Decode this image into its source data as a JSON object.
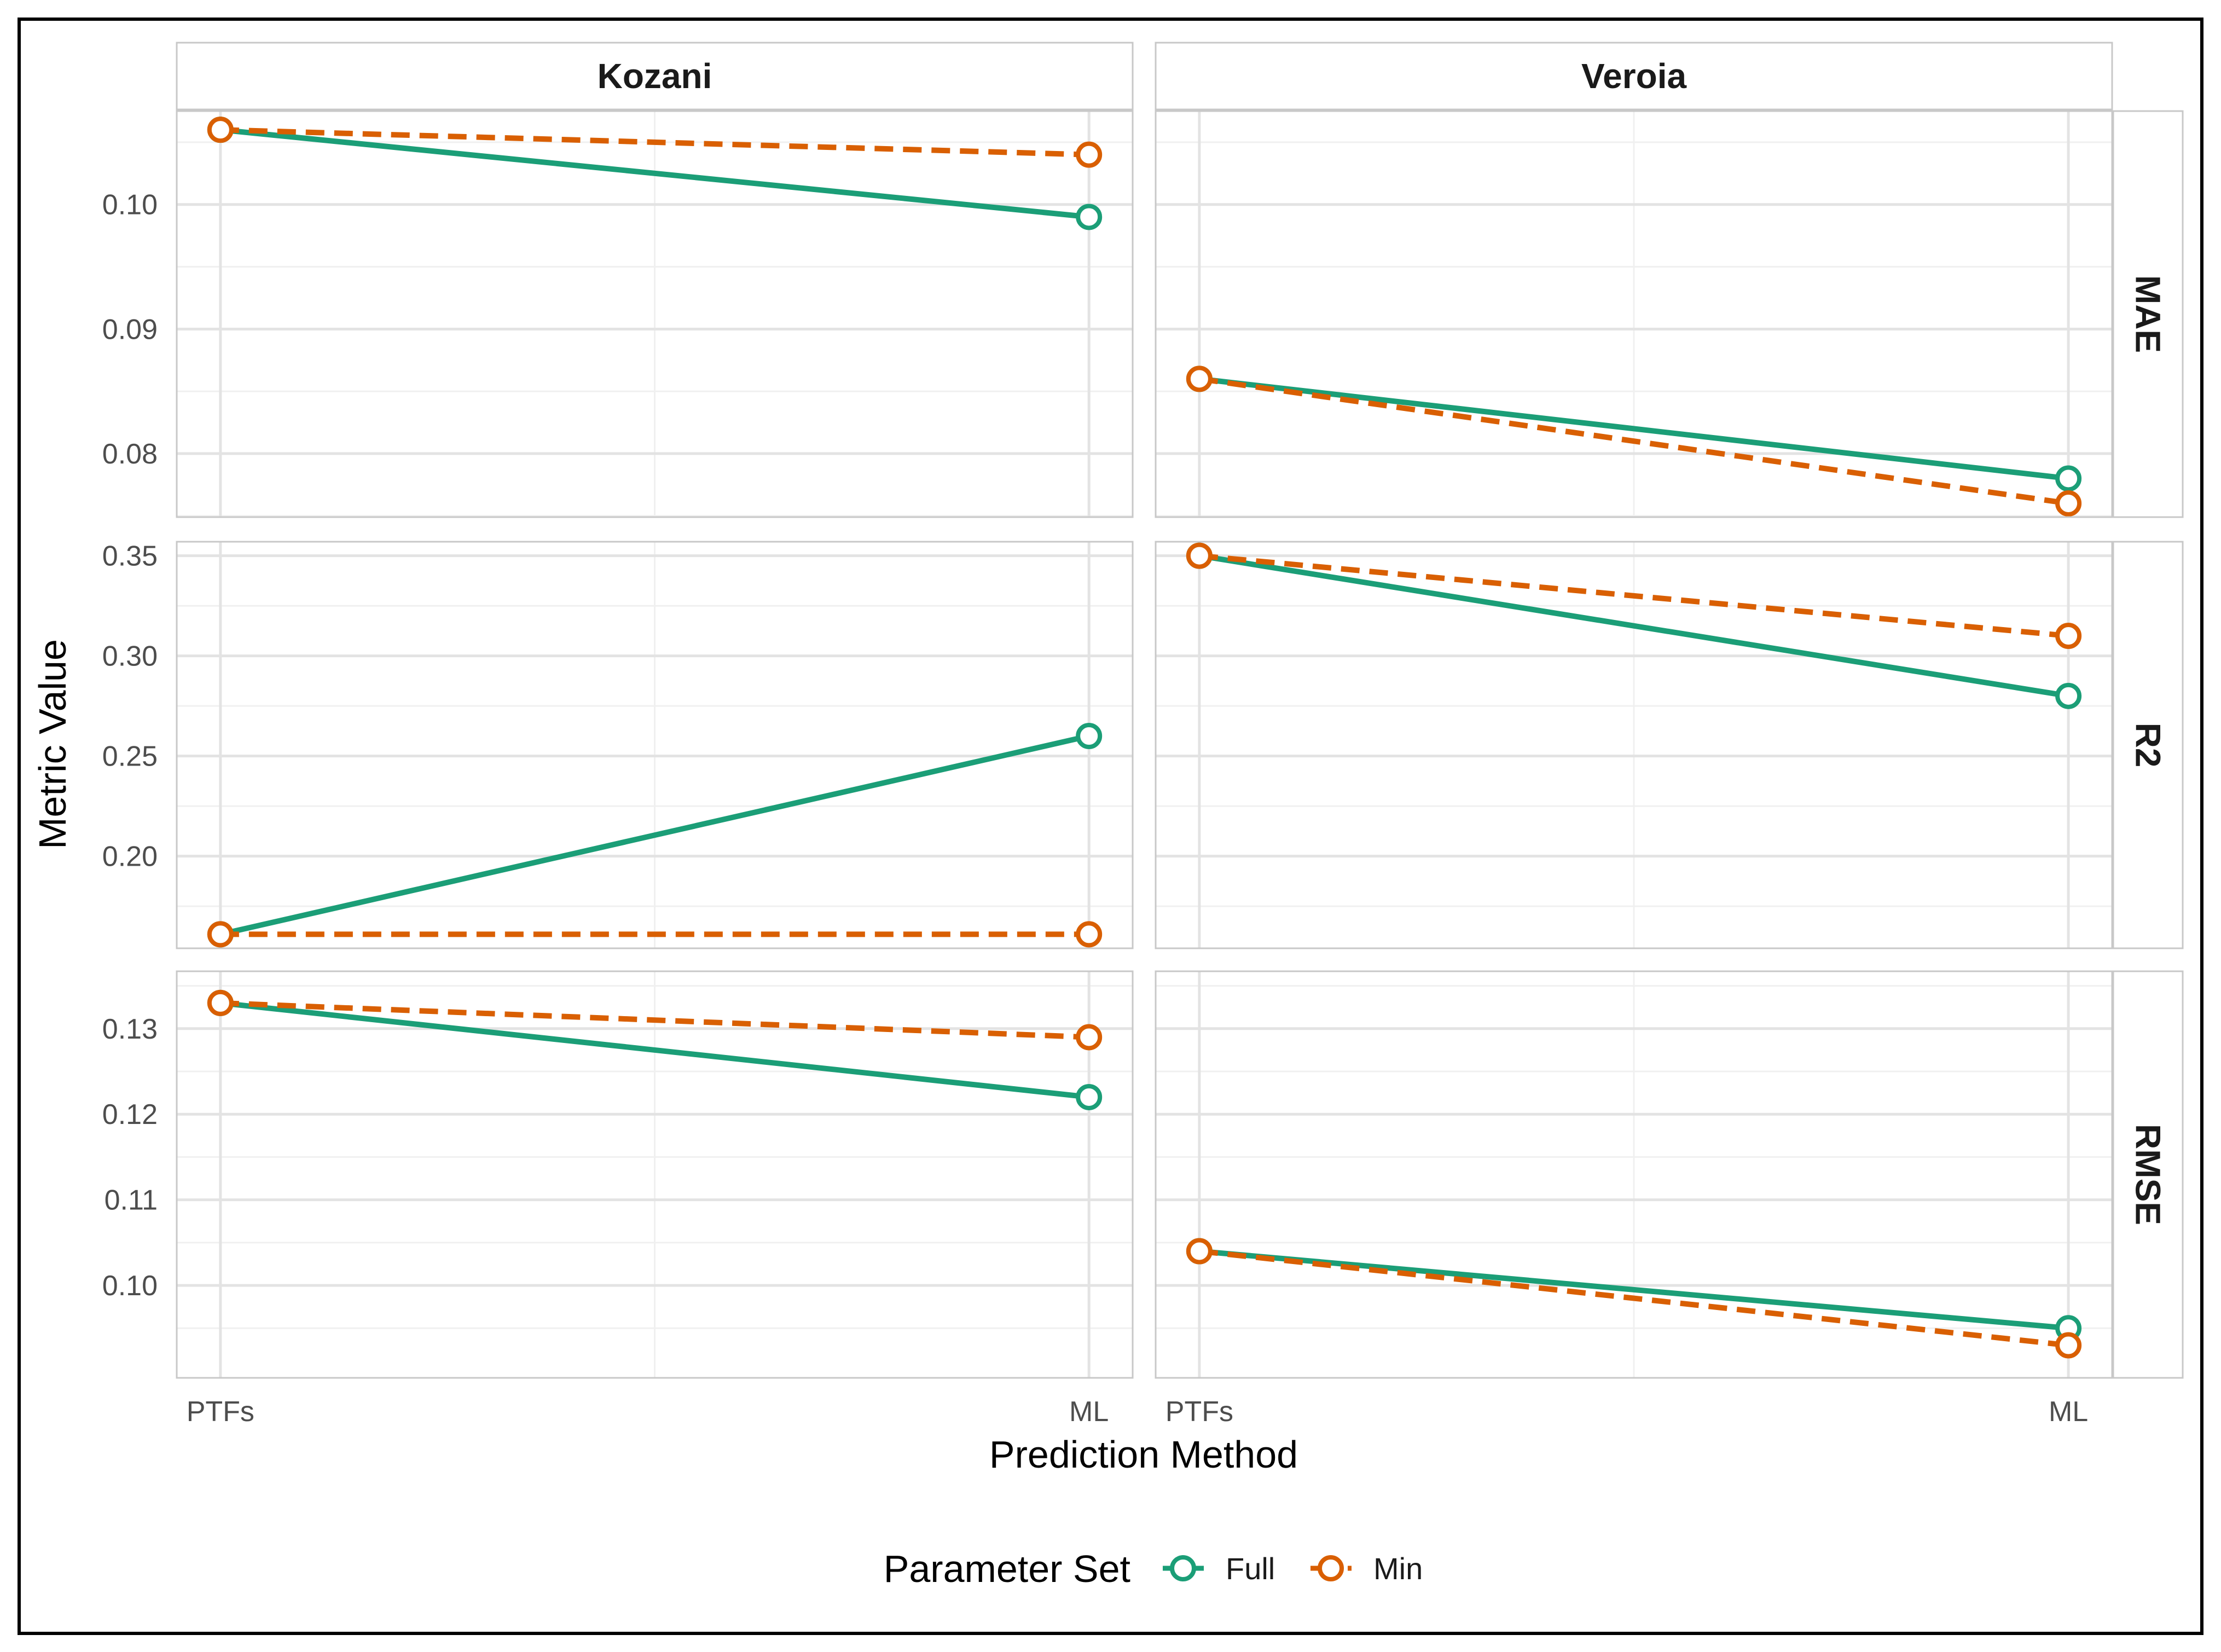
{
  "chart_data": {
    "type": "line",
    "x": [
      "PTFs",
      "ML"
    ],
    "xlabel": "Prediction Method",
    "ylabel": "Metric Value",
    "columns": [
      "Kozani",
      "Veroia"
    ],
    "rows": [
      {
        "name": "MAE",
        "ylim": [
          0.0749,
          0.1075
        ],
        "ticks": [
          0.08,
          0.09,
          0.1
        ],
        "tick_labels": [
          "0.08",
          "0.09",
          "0.10"
        ]
      },
      {
        "name": "R2",
        "ylim": [
          0.154,
          0.357
        ],
        "ticks": [
          0.2,
          0.25,
          0.3,
          0.35
        ],
        "tick_labels": [
          "0.20",
          "0.25",
          "0.30",
          "0.35"
        ]
      },
      {
        "name": "RMSE",
        "ylim": [
          0.0892,
          0.1367
        ],
        "ticks": [
          0.1,
          0.11,
          0.12,
          0.13
        ],
        "tick_labels": [
          "0.10",
          "0.11",
          "0.12",
          "0.13"
        ]
      }
    ],
    "series": [
      {
        "name": "Full",
        "color": "#1b9e77",
        "dash": "solid",
        "values": {
          "Kozani": {
            "MAE": [
              0.106,
              0.099
            ],
            "R2": [
              0.161,
              0.26
            ],
            "RMSE": [
              0.133,
              0.122
            ]
          },
          "Veroia": {
            "MAE": [
              0.086,
              0.078
            ],
            "R2": [
              0.35,
              0.28
            ],
            "RMSE": [
              0.104,
              0.095
            ]
          }
        }
      },
      {
        "name": "Min",
        "color": "#d95f02",
        "dash": "dashed",
        "values": {
          "Kozani": {
            "MAE": [
              0.106,
              0.104
            ],
            "R2": [
              0.161,
              0.161
            ],
            "RMSE": [
              0.133,
              0.129
            ]
          },
          "Veroia": {
            "MAE": [
              0.086,
              0.076
            ],
            "R2": [
              0.35,
              0.31
            ],
            "RMSE": [
              0.104,
              0.093
            ]
          }
        }
      }
    ],
    "legend": {
      "title": "Parameter Set",
      "position": "bottom"
    }
  }
}
